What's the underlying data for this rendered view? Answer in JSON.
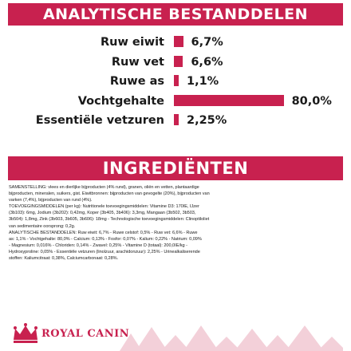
{
  "chart_data": {
    "type": "bar",
    "title": "ANALYTISCHE BESTANDDELEN",
    "categories": [
      "Ruw eiwit",
      "Ruw vet",
      "Ruwe as",
      "Vochtgehalte",
      "Essentiële vetzuren"
    ],
    "values": [
      6.7,
      6.6,
      1.1,
      80.0,
      2.25
    ],
    "value_labels": [
      "6,7%",
      "6,6%",
      "1,1%",
      "80,0%",
      "2,25%"
    ],
    "unit": "%",
    "xlim": [
      0,
      100
    ],
    "orientation": "horizontal",
    "grid": false,
    "legend": "none",
    "bar_color": "#c8214f"
  },
  "ingredients": {
    "title": "INGREDIËNTEN",
    "lines": [
      "SAMENSTELLING: vlees en dierlijke bijproducten (4% rund), granen, oliën en vetten, plantaardige",
      "bijproducten, mineralen, suikers, gist. Eiwitbronnen: bijproducten van gevogelte (20%), bijproducten van",
      "varken (7,4%), bijproducten van rund (4%).",
      "TOEVOEGINGSMIDDELEN (per kg): Nutritionele toevoegingsmiddelen: Vitamine D3: 170IE, IJzer",
      "(3b103): 6mg, Jodium (3b202): 0,42mg, Koper (3b405, 3b406): 3,3mg, Mangaan (3b502, 3b503,",
      "3b504): 1,8mg, Zink (3b603, 3b605, 3b606): 18mg - Technologische toevoegingsmiddelen: Clinoptiloliet",
      "van sedimentaire oorsprong: 0,2g.",
      "ANALYTISCHE BESTANDDELEN: Ruw eiwit: 6,7% - Ruwe celstof: 0,5% - Ruw vet: 6,6% - Ruwe",
      "as: 1,1% - Vochtgehalte: 80,0% - Calcium: 0,13% - Fosfor: 0,07% - Kalium: 0,22% - Natrium: 0,09%",
      "- Magnesium: 0,016% - Chloriden: 0,14% - Zwavel: 0,25% - Vitamine D (totaal): 200,0IE/kg -",
      "Hydroxyproline: 0,05% - Essentiële vetzuren (linolzuur, arachidonzuur): 2,25% - Urinealkaliserende",
      "stoffen: Kaliumcitraat: 0,38%, Calciumcarbonaat: 0,28%."
    ]
  },
  "footer": {
    "brand": "ROYAL CANIN",
    "logo_icon": "crown-logo-icon",
    "pattern_icon": "diamond-pattern-icon",
    "accent_color": "#c8214f",
    "pattern_color": "#f3d0d9"
  }
}
